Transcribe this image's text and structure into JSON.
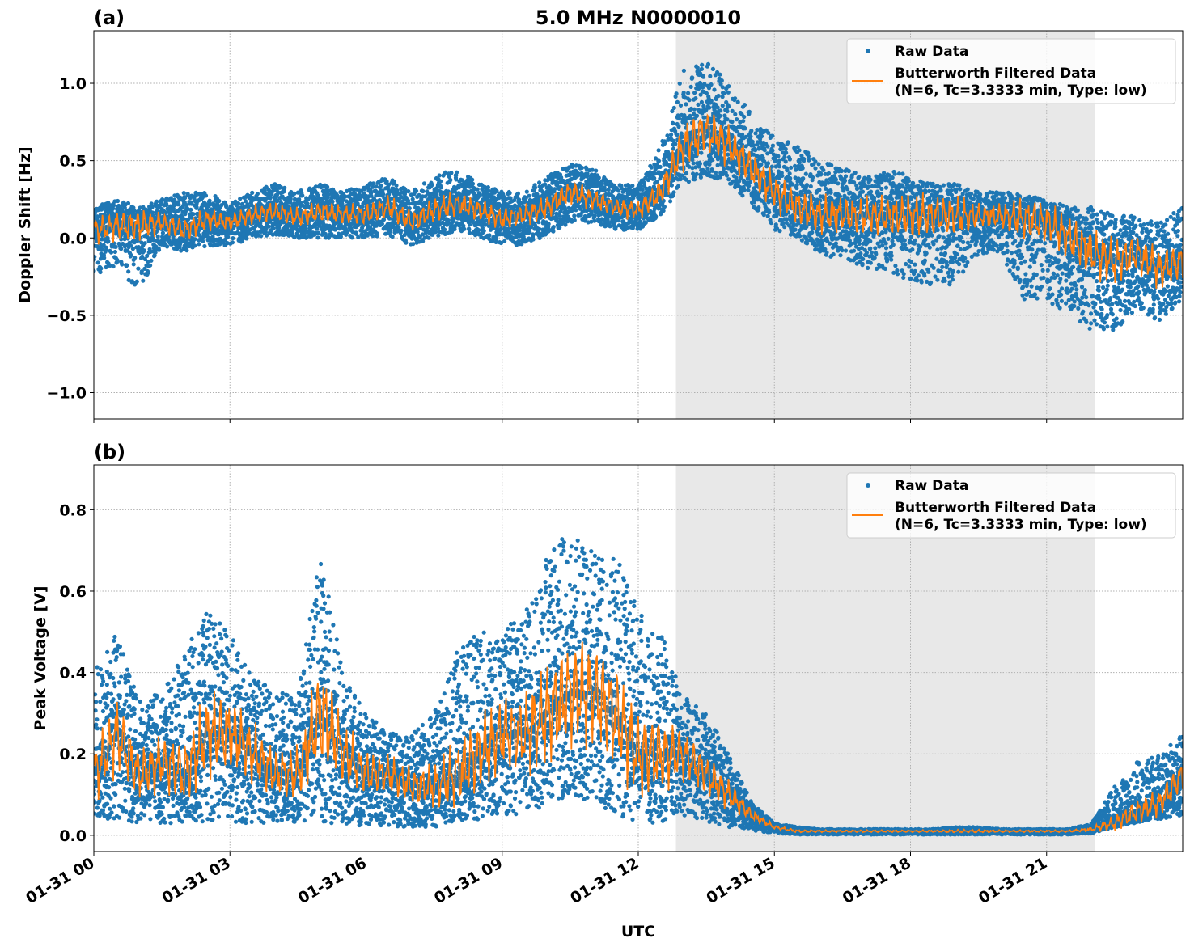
{
  "chart_data": [
    {
      "type": "scatter",
      "panel_label": "(a)",
      "title": "5.0 MHz N0000010",
      "ylabel": "Doppler Shift [Hz]",
      "ylim": [
        -1.17,
        1.34
      ],
      "yticks": [
        -1.0,
        -0.5,
        0.0,
        0.5,
        1.0
      ],
      "ytick_labels": [
        "−1.0",
        "−0.5",
        "0.0",
        "0.5",
        "1.0"
      ],
      "grid": true,
      "legend_placement": "top-right",
      "legend": [
        "Raw Data",
        "Butterworth Filtered Data",
        "(N=6, Tc=3.3333 min, Type: low)"
      ],
      "shaded_region_utc_hours": [
        12.83,
        22.07
      ],
      "x_utc_hours": [
        0,
        0.5,
        1,
        1.5,
        2,
        2.5,
        3,
        3.5,
        4,
        4.5,
        5,
        5.5,
        6,
        6.5,
        7,
        7.5,
        8,
        8.5,
        9,
        9.5,
        10,
        10.5,
        11,
        11.5,
        12,
        12.5,
        13,
        13.5,
        14,
        14.5,
        15,
        15.5,
        16,
        16.5,
        17,
        17.5,
        18,
        18.5,
        19,
        19.5,
        20,
        20.5,
        21,
        21.5,
        22,
        22.5,
        23,
        23.5,
        24
      ],
      "series": [
        {
          "name": "Butterworth Filtered Data",
          "color": "#ff7f0e",
          "values": [
            0.05,
            0.08,
            0.08,
            0.1,
            0.05,
            0.12,
            0.1,
            0.15,
            0.17,
            0.13,
            0.17,
            0.15,
            0.15,
            0.2,
            0.1,
            0.18,
            0.22,
            0.18,
            0.12,
            0.15,
            0.2,
            0.3,
            0.25,
            0.2,
            0.18,
            0.3,
            0.6,
            0.7,
            0.6,
            0.45,
            0.3,
            0.2,
            0.15,
            0.15,
            0.14,
            0.14,
            0.14,
            0.14,
            0.14,
            0.14,
            0.14,
            0.12,
            0.1,
            0.0,
            -0.1,
            -0.15,
            -0.1,
            -0.2,
            -0.15
          ]
        },
        {
          "name": "Raw Data",
          "color": "#1f77b4",
          "lower": [
            -0.25,
            -0.2,
            -0.35,
            -0.05,
            -0.1,
            -0.05,
            -0.05,
            0.0,
            0.02,
            0.0,
            0.0,
            0.0,
            0.0,
            0.02,
            -0.05,
            0.0,
            0.05,
            0.0,
            -0.05,
            -0.05,
            0.02,
            0.1,
            0.1,
            0.05,
            0.05,
            0.15,
            0.35,
            0.4,
            0.35,
            0.2,
            0.05,
            0.0,
            -0.1,
            -0.15,
            -0.2,
            -0.2,
            -0.3,
            -0.3,
            -0.3,
            -0.1,
            -0.1,
            -0.4,
            -0.4,
            -0.5,
            -0.6,
            -0.6,
            -0.45,
            -0.55,
            -0.4
          ],
          "upper": [
            0.2,
            0.25,
            0.2,
            0.25,
            0.3,
            0.3,
            0.22,
            0.3,
            0.35,
            0.3,
            0.35,
            0.3,
            0.35,
            0.4,
            0.3,
            0.4,
            0.45,
            0.35,
            0.3,
            0.3,
            0.4,
            0.48,
            0.45,
            0.35,
            0.35,
            0.6,
            1.1,
            1.15,
            1.0,
            0.8,
            0.65,
            0.6,
            0.5,
            0.45,
            0.4,
            0.45,
            0.4,
            0.35,
            0.35,
            0.3,
            0.3,
            0.28,
            0.25,
            0.2,
            0.2,
            0.15,
            0.15,
            0.1,
            0.2
          ]
        }
      ]
    },
    {
      "type": "scatter",
      "panel_label": "(b)",
      "xlabel": "UTC",
      "ylabel": "Peak Voltage [V]",
      "ylim": [
        -0.04,
        0.91
      ],
      "yticks": [
        0.0,
        0.2,
        0.4,
        0.6,
        0.8
      ],
      "ytick_labels": [
        "0.0",
        "0.2",
        "0.4",
        "0.6",
        "0.8"
      ],
      "xticks_utc_hours": [
        0,
        3,
        6,
        9,
        12,
        15,
        18,
        21
      ],
      "xtick_labels": [
        "01-31 00",
        "01-31 03",
        "01-31 06",
        "01-31 09",
        "01-31 12",
        "01-31 15",
        "01-31 18",
        "01-31 21"
      ],
      "xlim_utc_hours": [
        0,
        24
      ],
      "grid": true,
      "legend_placement": "top-right",
      "legend": [
        "Raw Data",
        "Butterworth Filtered Data",
        "(N=6, Tc=3.3333 min, Type: low)"
      ],
      "shaded_region_utc_hours": [
        12.83,
        22.07
      ],
      "x_utc_hours": [
        0,
        0.5,
        1,
        1.5,
        2,
        2.5,
        3,
        3.5,
        4,
        4.5,
        5,
        5.5,
        6,
        6.5,
        7,
        7.5,
        8,
        8.5,
        9,
        9.5,
        10,
        10.5,
        11,
        11.5,
        12,
        12.5,
        13,
        13.5,
        14,
        14.5,
        15,
        15.5,
        16,
        16.5,
        17,
        17.5,
        18,
        18.5,
        19,
        19.5,
        20,
        20.5,
        21,
        21.5,
        22,
        22.5,
        23,
        23.5,
        24
      ],
      "series": [
        {
          "name": "Butterworth Filtered Data",
          "color": "#ff7f0e",
          "values": [
            0.15,
            0.25,
            0.15,
            0.18,
            0.15,
            0.25,
            0.25,
            0.2,
            0.15,
            0.15,
            0.3,
            0.2,
            0.15,
            0.15,
            0.12,
            0.12,
            0.15,
            0.2,
            0.25,
            0.25,
            0.3,
            0.35,
            0.35,
            0.3,
            0.2,
            0.2,
            0.2,
            0.15,
            0.1,
            0.05,
            0.02,
            0.01,
            0.01,
            0.01,
            0.01,
            0.01,
            0.01,
            0.01,
            0.01,
            0.01,
            0.01,
            0.01,
            0.01,
            0.01,
            0.015,
            0.03,
            0.06,
            0.08,
            0.15
          ]
        },
        {
          "name": "Raw Data",
          "color": "#1f77b4",
          "lower": [
            0.04,
            0.04,
            0.03,
            0.03,
            0.03,
            0.03,
            0.03,
            0.03,
            0.03,
            0.03,
            0.03,
            0.03,
            0.02,
            0.02,
            0.02,
            0.02,
            0.03,
            0.04,
            0.05,
            0.05,
            0.07,
            0.1,
            0.08,
            0.05,
            0.03,
            0.03,
            0.05,
            0.03,
            0.02,
            0.01,
            0.005,
            0.002,
            0.002,
            0.002,
            0.002,
            0.002,
            0.002,
            0.002,
            0.002,
            0.002,
            0.002,
            0.002,
            0.002,
            0.002,
            0.005,
            0.02,
            0.03,
            0.04,
            0.05
          ],
          "upper": [
            0.4,
            0.5,
            0.35,
            0.35,
            0.45,
            0.55,
            0.5,
            0.4,
            0.35,
            0.35,
            0.7,
            0.4,
            0.3,
            0.25,
            0.25,
            0.3,
            0.45,
            0.5,
            0.5,
            0.55,
            0.7,
            0.75,
            0.7,
            0.7,
            0.55,
            0.5,
            0.35,
            0.3,
            0.2,
            0.08,
            0.03,
            0.02,
            0.015,
            0.015,
            0.015,
            0.015,
            0.015,
            0.015,
            0.02,
            0.02,
            0.015,
            0.015,
            0.015,
            0.015,
            0.03,
            0.12,
            0.18,
            0.2,
            0.25
          ]
        }
      ]
    }
  ]
}
